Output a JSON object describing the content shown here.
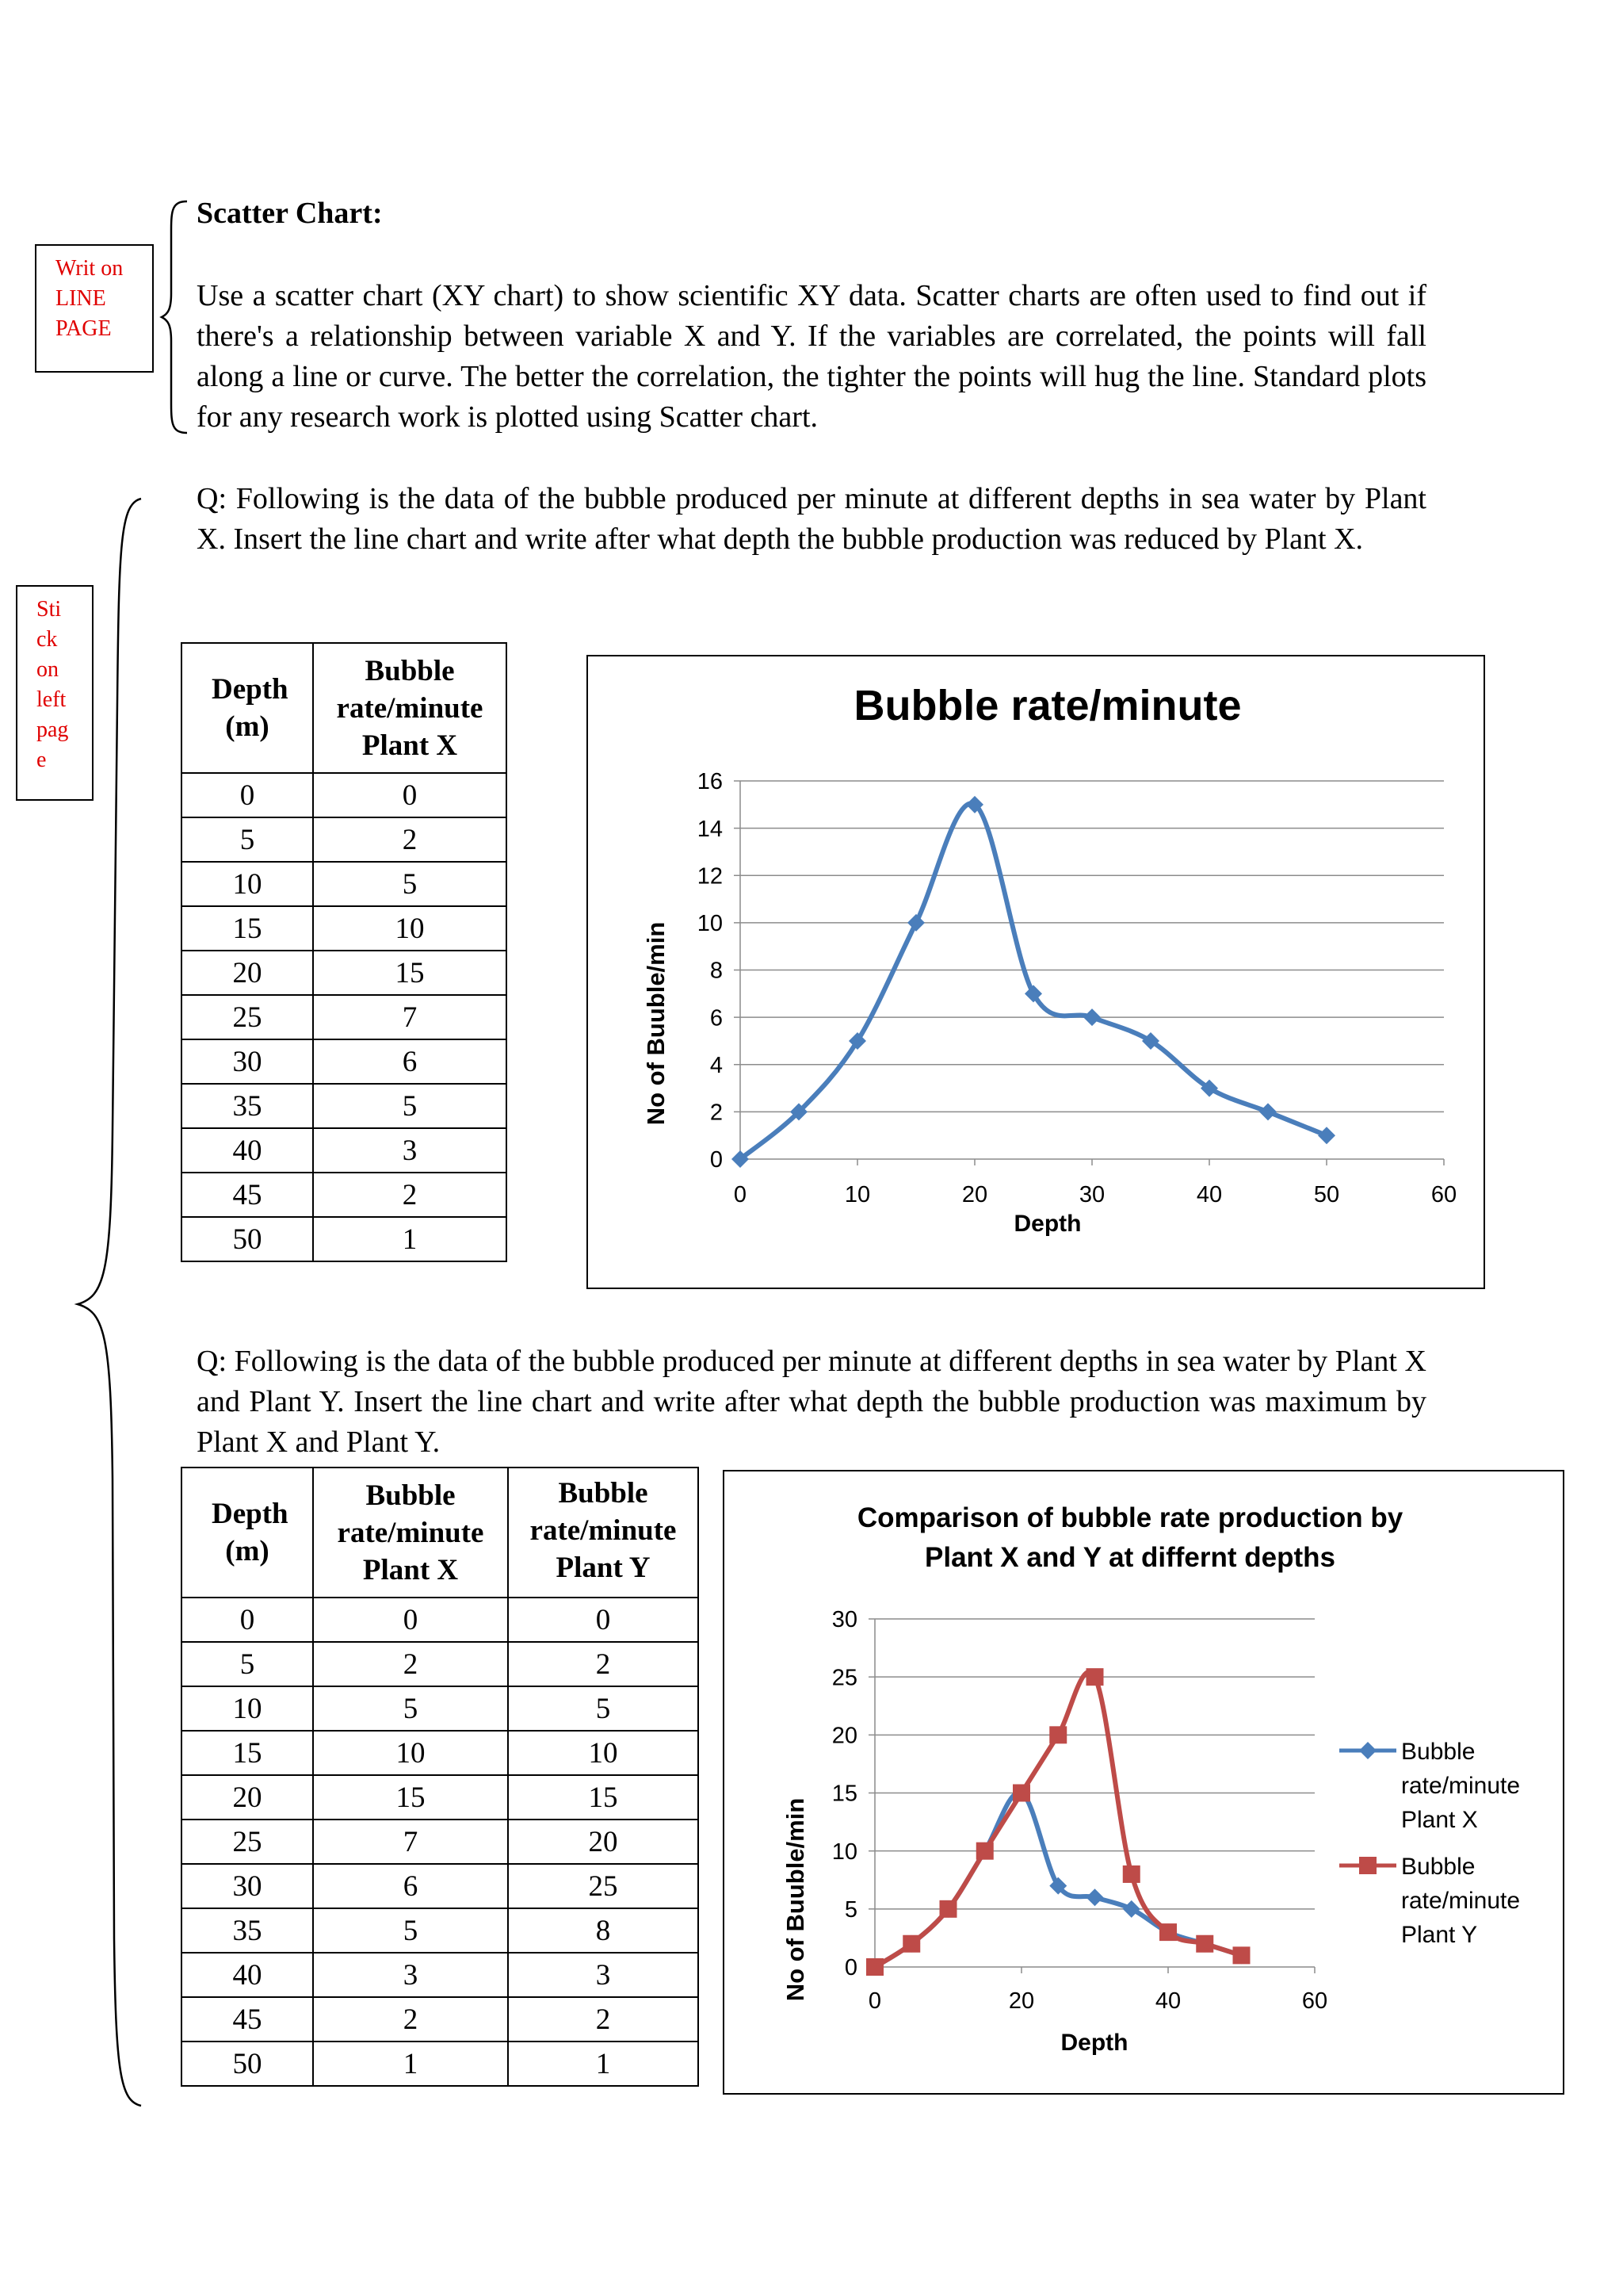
{
  "notes": {
    "line_page": [
      "Writ on",
      "LINE",
      "PAGE"
    ],
    "left_page": [
      "Sti",
      "ck",
      "on",
      "left",
      "pag",
      "e"
    ]
  },
  "scatter_heading": "Scatter Chart:",
  "scatter_paragraph": "Use a scatter chart (XY chart) to show scientific XY data. Scatter charts are often used to find out if there's a relationship between variable X and Y. If the variables are correlated, the points will fall along a line or curve. The better the correlation, the tighter the points will hug the line. Standard plots for any research work is plotted using Scatter chart.",
  "question1": "Q: Following is the data of the bubble produced per minute at different depths in sea water by Plant X. Insert the line chart and write after what depth the bubble production was reduced by Plant X.",
  "question2": "Q: Following is the data of the bubble produced per minute at different depths in sea water by Plant X and Plant Y. Insert the line chart and write after what depth the bubble production was maximum by Plant X and Plant Y.",
  "table1": {
    "headers": [
      "Depth (m)",
      "Bubble rate/minute Plant X"
    ],
    "rows": [
      [
        "0",
        "0"
      ],
      [
        "5",
        "2"
      ],
      [
        "10",
        "5"
      ],
      [
        "15",
        "10"
      ],
      [
        "20",
        "15"
      ],
      [
        "25",
        "7"
      ],
      [
        "30",
        "6"
      ],
      [
        "35",
        "5"
      ],
      [
        "40",
        "3"
      ],
      [
        "45",
        "2"
      ],
      [
        "50",
        "1"
      ]
    ]
  },
  "table2": {
    "headers": [
      "Depth (m)",
      "Bubble rate/minute Plant X",
      "Bubble rate/minute Plant Y"
    ],
    "rows": [
      [
        "0",
        "0",
        "0"
      ],
      [
        "5",
        "2",
        "2"
      ],
      [
        "10",
        "5",
        "5"
      ],
      [
        "15",
        "10",
        "10"
      ],
      [
        "20",
        "15",
        "15"
      ],
      [
        "25",
        "7",
        "20"
      ],
      [
        "30",
        "6",
        "25"
      ],
      [
        "35",
        "5",
        "8"
      ],
      [
        "40",
        "3",
        "3"
      ],
      [
        "45",
        "2",
        "2"
      ],
      [
        "50",
        "1",
        "1"
      ]
    ]
  },
  "chart_data": [
    {
      "type": "scatter",
      "title": "Bubble rate/minute",
      "xlabel": "Depth",
      "ylabel": "No of Buuble/min",
      "xlim": [
        0,
        60
      ],
      "ylim": [
        0,
        16
      ],
      "xticks": [
        0,
        10,
        20,
        30,
        40,
        50,
        60
      ],
      "yticks": [
        0,
        2,
        4,
        6,
        8,
        10,
        12,
        14,
        16
      ],
      "grid": "horizontal",
      "legend": "none",
      "series": [
        {
          "color": "#4a7ebb",
          "marker": "diamond",
          "x": [
            0,
            5,
            10,
            15,
            20,
            25,
            30,
            35,
            40,
            45,
            50
          ],
          "y": [
            0,
            2,
            5,
            10,
            15,
            7,
            6,
            5,
            3,
            2,
            1
          ]
        }
      ]
    },
    {
      "type": "scatter",
      "title": "Comparison of bubble rate production  by Plant X and Y at differnt depths",
      "title_lines": [
        "Comparison of bubble rate production  by",
        "Plant X and Y at differnt depths"
      ],
      "xlabel": "Depth",
      "ylabel": "No of Buuble/min",
      "xlim": [
        0,
        60
      ],
      "ylim": [
        0,
        30
      ],
      "xticks": [
        0,
        20,
        40,
        60
      ],
      "yticks": [
        0,
        5,
        10,
        15,
        20,
        25,
        30
      ],
      "grid": "horizontal",
      "legend": "right",
      "series": [
        {
          "name": "Bubble rate/minute Plant X",
          "name_lines": [
            "Bubble",
            "rate/minute",
            "Plant X"
          ],
          "color": "#4a7ebb",
          "marker": "diamond",
          "x": [
            0,
            5,
            10,
            15,
            20,
            25,
            30,
            35,
            40,
            45,
            50
          ],
          "y": [
            0,
            2,
            5,
            10,
            15,
            7,
            6,
            5,
            3,
            2,
            1
          ]
        },
        {
          "name": "Bubble rate/minute Plant Y",
          "name_lines": [
            "Bubble",
            "rate/minute",
            "Plant Y"
          ],
          "color": "#be4b48",
          "marker": "square",
          "x": [
            0,
            5,
            10,
            15,
            20,
            25,
            30,
            35,
            40,
            45,
            50
          ],
          "y": [
            0,
            2,
            5,
            10,
            15,
            20,
            25,
            8,
            3,
            2,
            1
          ]
        }
      ]
    }
  ]
}
